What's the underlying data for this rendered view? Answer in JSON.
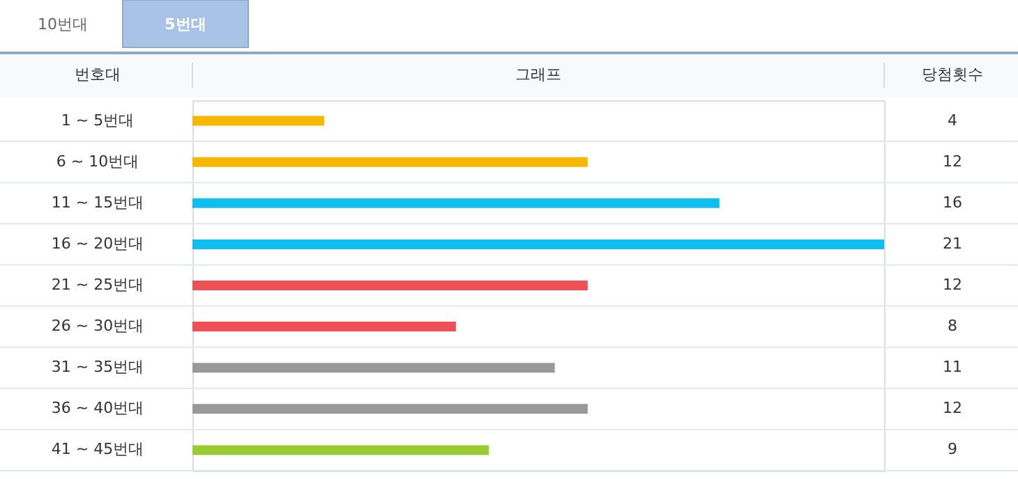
{
  "chart_data": {
    "type": "bar",
    "orientation": "horizontal",
    "ylabel": "번호대",
    "xlabel": "그래프",
    "categories": [
      "1 ~  5번대",
      "6 ~ 10번대",
      "11 ~ 15번대",
      "16 ~ 20번대",
      "21 ~ 25번대",
      "26 ~ 30번대",
      "31 ~ 35번대",
      "36 ~ 40번대",
      "41 ~ 45번대"
    ],
    "values": [
      4,
      12,
      16,
      21,
      12,
      8,
      11,
      12,
      9
    ],
    "colors": [
      "#f9b800",
      "#f9b800",
      "#10bff0",
      "#10bff0",
      "#ee5055",
      "#ee5055",
      "#999999",
      "#999999",
      "#99cc33"
    ],
    "data_labels": true,
    "annotations": [
      "당첨횟수",
      "10번대",
      "5번대"
    ]
  }
}
